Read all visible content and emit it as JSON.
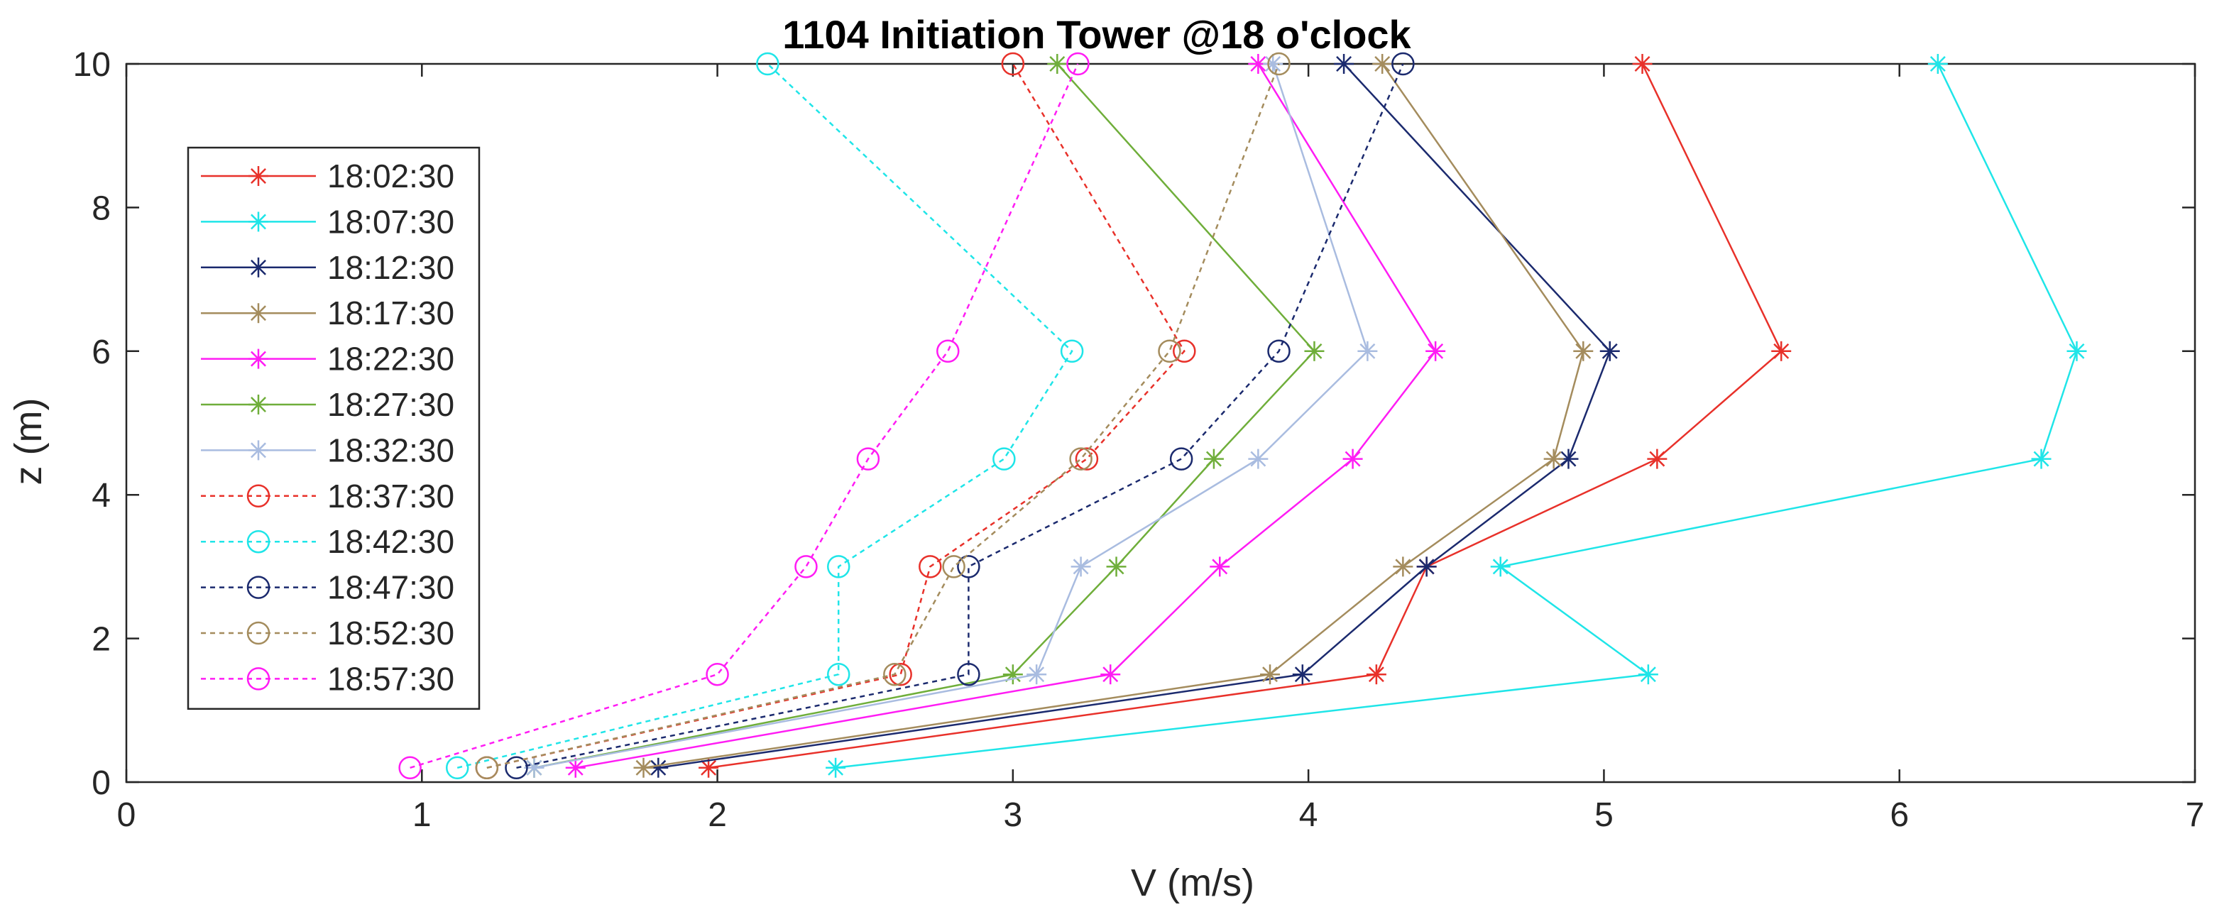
{
  "chart_data": {
    "type": "line",
    "title": "1104 Initiation Tower @18 o'clock",
    "xlabel": "V (m/s)",
    "ylabel": "z (m)",
    "xlim": [
      0,
      7
    ],
    "ylim": [
      0,
      10
    ],
    "xticks": [
      "0",
      "1",
      "2",
      "3",
      "4",
      "5",
      "6",
      "7"
    ],
    "yticks": [
      "0",
      "2",
      "4",
      "6",
      "8",
      "10"
    ],
    "grid": false,
    "legend_position": "left",
    "z": [
      0.2,
      1.5,
      3,
      4.5,
      6,
      10
    ],
    "series": [
      {
        "name": "18:02:30",
        "color": "#e8312a",
        "marker": "star",
        "style": "solid",
        "values": [
          1.97,
          4.23,
          4.4,
          5.18,
          5.6,
          5.13
        ]
      },
      {
        "name": "18:07:30",
        "color": "#1fe5e8",
        "marker": "star",
        "style": "solid",
        "values": [
          2.4,
          5.15,
          4.65,
          6.48,
          6.6,
          6.13
        ]
      },
      {
        "name": "18:12:30",
        "color": "#1b2a6e",
        "marker": "star",
        "style": "solid",
        "values": [
          1.8,
          3.98,
          4.4,
          4.88,
          5.02,
          4.12
        ]
      },
      {
        "name": "18:17:30",
        "color": "#a48c5d",
        "marker": "star",
        "style": "solid",
        "values": [
          1.75,
          3.87,
          4.32,
          4.83,
          4.93,
          4.25
        ]
      },
      {
        "name": "18:22:30",
        "color": "#ff1cf4",
        "marker": "star",
        "style": "solid",
        "values": [
          1.52,
          3.33,
          3.7,
          4.15,
          4.43,
          3.83
        ]
      },
      {
        "name": "18:27:30",
        "color": "#6fae3a",
        "marker": "star",
        "style": "solid",
        "values": [
          1.38,
          3.0,
          3.35,
          3.68,
          4.02,
          3.15
        ]
      },
      {
        "name": "18:32:30",
        "color": "#a9bce0",
        "marker": "star",
        "style": "solid",
        "values": [
          1.38,
          3.08,
          3.23,
          3.83,
          4.2,
          3.88
        ]
      },
      {
        "name": "18:37:30",
        "color": "#e8312a",
        "marker": "circle",
        "style": "dashed",
        "values": [
          1.22,
          2.62,
          2.72,
          3.25,
          3.58,
          3.0
        ]
      },
      {
        "name": "18:42:30",
        "color": "#1fe5e8",
        "marker": "circle",
        "style": "dashed",
        "values": [
          1.12,
          2.41,
          2.41,
          2.97,
          3.2,
          2.17
        ]
      },
      {
        "name": "18:47:30",
        "color": "#1b2a6e",
        "marker": "circle",
        "style": "dashed",
        "values": [
          1.32,
          2.85,
          2.85,
          3.57,
          3.9,
          4.32
        ]
      },
      {
        "name": "18:52:30",
        "color": "#a48c5d",
        "marker": "circle",
        "style": "dashed",
        "values": [
          1.22,
          2.6,
          2.8,
          3.23,
          3.53,
          3.9
        ]
      },
      {
        "name": "18:57:30",
        "color": "#ff1cf4",
        "marker": "circle",
        "style": "dashed",
        "values": [
          0.96,
          2.0,
          2.3,
          2.51,
          2.78,
          3.22
        ]
      }
    ]
  }
}
